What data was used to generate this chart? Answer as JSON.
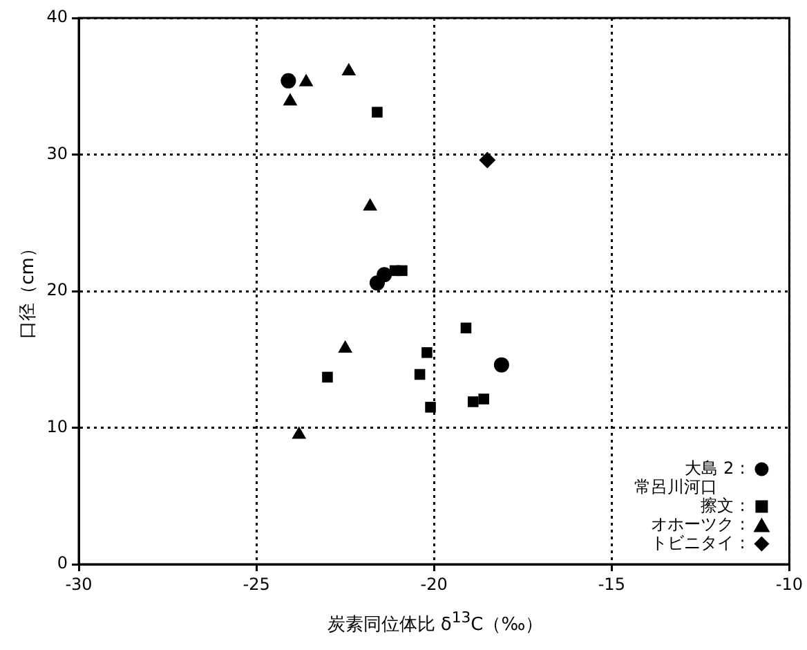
{
  "chart_data": {
    "type": "scatter",
    "xlabel": "炭素同位体比 δ$^{13}$C（‰）",
    "ylabel": "口径（cm）",
    "xlim": [
      -30,
      -10
    ],
    "xticks": [
      -30,
      -25,
      -20,
      -15,
      -10
    ],
    "ylim": [
      0,
      40
    ],
    "yticks": [
      0,
      10,
      20,
      30,
      40
    ],
    "grid": true,
    "legend": "bottom right",
    "series": [
      {
        "name": "大島 2 :",
        "color": "#000000",
        "marker": "circle",
        "x": [
          -24.1,
          -21.6,
          -21.4,
          -18.1
        ],
        "values": [
          35.4,
          20.6,
          21.2,
          14.6
        ]
      },
      {
        "name": "常呂川河口擦文 :",
        "color": "#000000",
        "marker": "square",
        "x": [
          -21.6,
          -21.1,
          -20.9,
          -19.1,
          -20.2,
          -23.0,
          -20.4,
          -18.9,
          -18.6,
          -20.1
        ],
        "values": [
          33.1,
          21.5,
          21.5,
          17.3,
          15.5,
          13.7,
          13.9,
          11.9,
          12.1,
          11.5
        ]
      },
      {
        "name": "オホーツク :",
        "color": "#000000",
        "marker": "triangle",
        "x": [
          -23.6,
          -22.4,
          -24.05,
          -21.8,
          -22.5,
          -23.8
        ],
        "values": [
          35.3,
          36.1,
          33.9,
          26.2,
          15.8,
          9.5
        ]
      },
      {
        "name": "トビニタイ :",
        "color": "#000000",
        "marker": "diamond",
        "x": [
          -18.5
        ],
        "values": [
          29.6
        ]
      }
    ]
  }
}
